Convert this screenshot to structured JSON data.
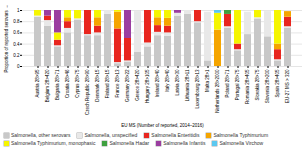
{
  "chart_data": {
    "type": "bar",
    "stacked": true,
    "categories": [
      "Austria 28>95",
      "Belgium 28>420",
      "Bulgaria 28>71",
      "Croatia 28>46",
      "Cyprus 28>75",
      "Czech Republic 28>90",
      "Denmark 28>15",
      "Finland 28>15",
      "France 28>13",
      "Germany 28>22",
      "Greece 28>420",
      "Hungary 28>105",
      "Ireland 28>40",
      "Italy 28>40",
      "Latvia 28>30",
      "Lithuania 28>11",
      "Luxembourg 28>13",
      "Malta 28>1",
      "Netherlands 28>2000",
      "Poland 28>71",
      "Portugal 28>75",
      "Romania 28>405",
      "Slovakia 28>75",
      "Slovenia 28>200",
      "Spain 28>405",
      "EU-27 MS > 320"
    ],
    "series": [
      {
        "name": "Salmonella, other serovars",
        "color": "#c8c8c8",
        "values": [
          0.88,
          0.72,
          0.35,
          0.6,
          0.83,
          0.55,
          0.55,
          0.93,
          0.05,
          0.08,
          0.25,
          0.35,
          0.55,
          0.54,
          0.9,
          0.93,
          0.78,
          0.1,
          0.0,
          0.68,
          0.28,
          0.57,
          0.85,
          0.53,
          0.1,
          0.68
        ]
      },
      {
        "name": "Salmonella, unspecified",
        "color": "#e8e8e8",
        "values": [
          0.02,
          0.1,
          0.02,
          0.08,
          0.02,
          0.02,
          0.05,
          0.07,
          0.02,
          0.02,
          0.73,
          0.07,
          0.06,
          0.06,
          0.05,
          0.07,
          0.02,
          0.87,
          0.0,
          0.03,
          0.02,
          0.4,
          0.02,
          0.45,
          0.02,
          0.03
        ]
      },
      {
        "name": "Salmonella Enteritidis",
        "color": "#e8261f",
        "values": [
          0.0,
          0.08,
          0.1,
          0.12,
          0.0,
          0.43,
          0.12,
          0.0,
          0.6,
          0.4,
          0.0,
          0.58,
          0.12,
          0.12,
          0.0,
          0.0,
          0.2,
          0.0,
          0.0,
          0.22,
          0.1,
          0.0,
          0.0,
          0.0,
          0.18,
          0.17
        ]
      },
      {
        "name": "Salmonella Typhimurium",
        "color": "#f5a500",
        "values": [
          0.0,
          0.0,
          0.0,
          0.07,
          0.0,
          0.0,
          0.15,
          0.0,
          0.3,
          0.0,
          0.0,
          0.0,
          0.14,
          0.14,
          0.0,
          0.0,
          0.0,
          0.0,
          0.65,
          0.0,
          0.0,
          0.0,
          0.0,
          0.0,
          0.1,
          0.1
        ]
      },
      {
        "name": "Salmonella Typhimurium, monophasic",
        "color": "#f5f500",
        "values": [
          0.1,
          0.0,
          0.13,
          0.13,
          0.15,
          0.0,
          0.13,
          0.0,
          0.03,
          0.0,
          0.0,
          0.0,
          0.13,
          0.14,
          0.0,
          0.0,
          0.0,
          0.0,
          0.3,
          0.0,
          0.6,
          0.0,
          0.13,
          0.0,
          0.6,
          0.0
        ]
      },
      {
        "name": "Salmonella Hadar",
        "color": "#3fa03f",
        "values": [
          0.0,
          0.0,
          0.0,
          0.0,
          0.0,
          0.0,
          0.0,
          0.0,
          0.0,
          0.0,
          0.0,
          0.0,
          0.0,
          0.0,
          0.0,
          0.0,
          0.0,
          0.0,
          0.0,
          0.07,
          0.0,
          0.0,
          0.0,
          0.0,
          0.0,
          0.0
        ]
      },
      {
        "name": "Salmonella Infantis",
        "color": "#9b3da0",
        "values": [
          0.0,
          0.1,
          0.4,
          0.0,
          0.0,
          0.0,
          0.0,
          0.0,
          0.0,
          0.5,
          0.0,
          0.0,
          0.0,
          0.0,
          0.05,
          0.0,
          0.0,
          0.0,
          0.0,
          0.0,
          0.0,
          0.0,
          0.0,
          0.0,
          0.0,
          0.0
        ]
      },
      {
        "name": "Salmonella Virchow",
        "color": "#5bc8f0",
        "values": [
          0.0,
          0.0,
          0.0,
          0.0,
          0.0,
          0.0,
          0.0,
          0.0,
          0.0,
          0.0,
          0.0,
          0.0,
          0.0,
          0.0,
          0.0,
          0.0,
          0.0,
          0.0,
          0.05,
          0.0,
          0.0,
          0.0,
          0.0,
          0.0,
          0.0,
          0.0
        ]
      }
    ],
    "xlabel": "EU MS (Number of reported, 2014–2016)",
    "ylabel": "Proportion of reported serovars",
    "ylim": [
      0,
      1.0
    ],
    "yticks": [
      0,
      0.2,
      0.4,
      0.6,
      0.8,
      1
    ],
    "grid": true,
    "legend": "bottom"
  }
}
